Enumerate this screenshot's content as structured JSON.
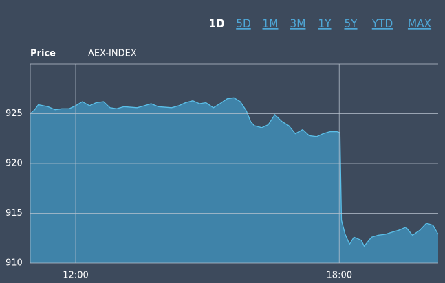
{
  "toolbar": {
    "ranges": [
      "1D",
      "5D",
      "1M",
      "3M",
      "1Y",
      "5Y",
      "YTD",
      "MAX"
    ],
    "active_index": 0
  },
  "chart_data": {
    "type": "area",
    "ylabel": "Price",
    "x": [
      658,
      664,
      669,
      682,
      692,
      701,
      711,
      720,
      729,
      739,
      748,
      758,
      767,
      776,
      786,
      804,
      814,
      823,
      833,
      851,
      861,
      870,
      880,
      889,
      898,
      908,
      917,
      927,
      936,
      945,
      953,
      959,
      964,
      974,
      983,
      992,
      1002,
      1011,
      1020,
      1030,
      1039,
      1049,
      1058,
      1067,
      1077,
      1081,
      1083,
      1088,
      1094,
      1100,
      1110,
      1114,
      1124,
      1133,
      1143,
      1152,
      1161,
      1171,
      1180,
      1190,
      1199,
      1208,
      1215
    ],
    "series": [
      {
        "name": "AEX-INDEX",
        "color": "#5bbfe8",
        "fill": "#3f86ad",
        "values": [
          925.0,
          925.4,
          925.9,
          925.7,
          925.4,
          925.5,
          925.5,
          925.8,
          926.2,
          925.8,
          926.1,
          926.2,
          925.6,
          925.5,
          925.7,
          925.6,
          925.8,
          926.0,
          925.7,
          925.6,
          925.8,
          926.1,
          926.3,
          926.0,
          926.1,
          925.6,
          926.0,
          926.5,
          926.6,
          926.2,
          925.3,
          924.2,
          923.8,
          923.6,
          923.9,
          924.9,
          924.2,
          923.8,
          923.0,
          923.4,
          922.8,
          922.7,
          923.0,
          923.2,
          923.2,
          923.1,
          914.3,
          912.9,
          911.9,
          912.6,
          912.3,
          911.7,
          912.6,
          912.8,
          912.9,
          913.1,
          913.3,
          913.6,
          912.8,
          913.3,
          914.0,
          913.8,
          912.9
        ]
      }
    ],
    "xlim": [
      658,
      1215
    ],
    "xticks": [
      {
        "value": 720,
        "label": "12:00"
      },
      {
        "value": 1080,
        "label": "18:00"
      }
    ],
    "ylim": [
      910,
      930
    ],
    "yticks": [
      910,
      915,
      920,
      925
    ],
    "grid": true
  }
}
